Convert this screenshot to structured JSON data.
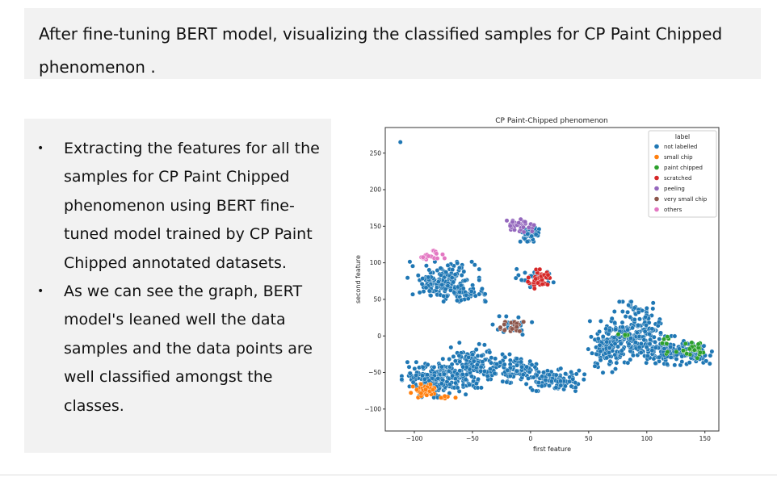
{
  "header": {
    "title": "After fine-tuning BERT model, visualizing the classified samples for CP Paint Chipped phenomenon ."
  },
  "bullets": [
    "Extracting the features for all the samples for CP Paint Chipped phenomenon using BERT fine-tuned model trained by CP Paint Chipped annotated datasets.",
    "As we can see the graph, BERT model's leaned well the data samples and the data points are well classified amongst the classes."
  ],
  "chart_data": {
    "type": "scatter",
    "title": "CP Paint-Chipped phenomenon",
    "xlabel": "first feature",
    "ylabel": "second feature",
    "xlim": [
      -125,
      162
    ],
    "ylim": [
      -130,
      285
    ],
    "xticks": [
      -100,
      -50,
      0,
      50,
      100,
      150
    ],
    "yticks": [
      -100,
      -50,
      0,
      50,
      100,
      150,
      200,
      250
    ],
    "grid": false,
    "legend": {
      "title": "label",
      "placement": "top-right",
      "entries": [
        {
          "label": "not labelled",
          "color": "#1f77b4"
        },
        {
          "label": "small chip",
          "color": "#ff7f0e"
        },
        {
          "label": "paint chipped",
          "color": "#2ca02c"
        },
        {
          "label": "scratched",
          "color": "#d62728"
        },
        {
          "label": "peeling",
          "color": "#9467bd"
        },
        {
          "label": "very small chip",
          "color": "#8c564b"
        },
        {
          "label": "others",
          "color": "#e377c2"
        }
      ]
    },
    "series": [
      {
        "label": "not labelled",
        "color": "#1f77b4",
        "clusters": [
          {
            "cx": -112,
            "cy": 265,
            "rx": 1,
            "ry": 1,
            "n": 1
          },
          {
            "cx": -75,
            "cy": 75,
            "rx": 28,
            "ry": 24,
            "n": 170
          },
          {
            "cx": -55,
            "cy": 58,
            "rx": 18,
            "ry": 10,
            "n": 50
          },
          {
            "cx": 0,
            "cy": 140,
            "rx": 8,
            "ry": 10,
            "n": 50
          },
          {
            "cx": 5,
            "cy": 80,
            "rx": 18,
            "ry": 12,
            "n": 30
          },
          {
            "cx": -18,
            "cy": 15,
            "rx": 20,
            "ry": 12,
            "n": 25
          },
          {
            "cx": -80,
            "cy": -60,
            "rx": 28,
            "ry": 22,
            "n": 190
          },
          {
            "cx": -50,
            "cy": -40,
            "rx": 24,
            "ry": 28,
            "n": 150
          },
          {
            "cx": -15,
            "cy": -45,
            "rx": 20,
            "ry": 18,
            "n": 90
          },
          {
            "cx": 20,
            "cy": -60,
            "rx": 24,
            "ry": 14,
            "n": 110
          },
          {
            "cx": 65,
            "cy": -15,
            "rx": 14,
            "ry": 32,
            "n": 110
          },
          {
            "cx": 90,
            "cy": 5,
            "rx": 20,
            "ry": 38,
            "n": 200
          },
          {
            "cx": 120,
            "cy": -20,
            "rx": 24,
            "ry": 18,
            "n": 150
          },
          {
            "cx": 145,
            "cy": -25,
            "rx": 10,
            "ry": 12,
            "n": 40
          }
        ]
      },
      {
        "label": "small chip",
        "color": "#ff7f0e",
        "clusters": [
          {
            "cx": -92,
            "cy": -75,
            "rx": 10,
            "ry": 9,
            "n": 45
          },
          {
            "cx": -70,
            "cy": -85,
            "rx": 12,
            "ry": 4,
            "n": 6
          }
        ]
      },
      {
        "label": "paint chipped",
        "color": "#2ca02c",
        "clusters": [
          {
            "cx": 140,
            "cy": -20,
            "rx": 14,
            "ry": 10,
            "n": 25
          },
          {
            "cx": 80,
            "cy": 3,
            "rx": 12,
            "ry": 4,
            "n": 4
          },
          {
            "cx": 117,
            "cy": -14,
            "rx": 6,
            "ry": 14,
            "n": 7
          }
        ]
      },
      {
        "label": "scratched",
        "color": "#d62728",
        "clusters": [
          {
            "cx": 8,
            "cy": 78,
            "rx": 11,
            "ry": 12,
            "n": 45
          }
        ]
      },
      {
        "label": "peeling",
        "color": "#9467bd",
        "clusters": [
          {
            "cx": -8,
            "cy": 152,
            "rx": 13,
            "ry": 9,
            "n": 40
          }
        ]
      },
      {
        "label": "very small chip",
        "color": "#8c564b",
        "clusters": [
          {
            "cx": -15,
            "cy": 13,
            "rx": 10,
            "ry": 8,
            "n": 25
          }
        ]
      },
      {
        "label": "others",
        "color": "#e377c2",
        "clusters": [
          {
            "cx": -85,
            "cy": 110,
            "rx": 10,
            "ry": 6,
            "n": 22
          }
        ]
      }
    ]
  }
}
